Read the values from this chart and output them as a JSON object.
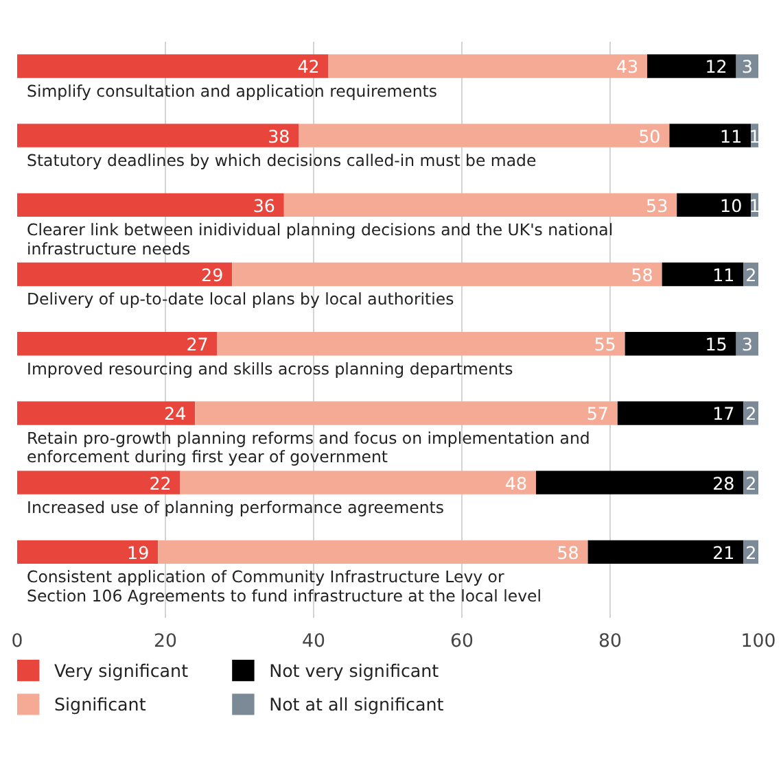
{
  "chart_data": {
    "type": "bar",
    "orientation": "horizontal",
    "stacked": true,
    "data_labels": true,
    "grid": "x",
    "legend": "bottom",
    "categories": [
      "Simplify consultation and application requirements",
      "Statutory deadlines by which decisions called-in must be made",
      "Clearer link between inidividual planning decisions and the UK's national\ninfrastructure needs",
      "Delivery of up-to-date local plans by local authorities",
      "Improved resourcing and skills across planning departments",
      "Retain pro-growth planning reforms and focus on implementation and\nenforcement during first year of government",
      "Increased use of planning performance agreements",
      "Consistent application of Community Infrastructure Levy or\nSection 106 Agreements to fund infrastructure at the local level"
    ],
    "xlim": [
      0,
      100
    ],
    "xticks": [
      0,
      20,
      40,
      60,
      80,
      100
    ],
    "series": [
      {
        "name": "Very significant",
        "color": "#e8453c",
        "values": [
          42,
          38,
          36,
          29,
          27,
          24,
          22,
          19
        ]
      },
      {
        "name": "Significant",
        "color": "#f5aa96",
        "values": [
          43,
          50,
          53,
          58,
          55,
          57,
          48,
          58
        ]
      },
      {
        "name": "Not very significant",
        "color": "#000000",
        "values": [
          12,
          11,
          10,
          11,
          15,
          17,
          28,
          21
        ]
      },
      {
        "name": "Not at all significant",
        "color": "#7b8a96",
        "values": [
          3,
          1,
          1,
          2,
          3,
          2,
          2,
          2
        ]
      }
    ]
  }
}
